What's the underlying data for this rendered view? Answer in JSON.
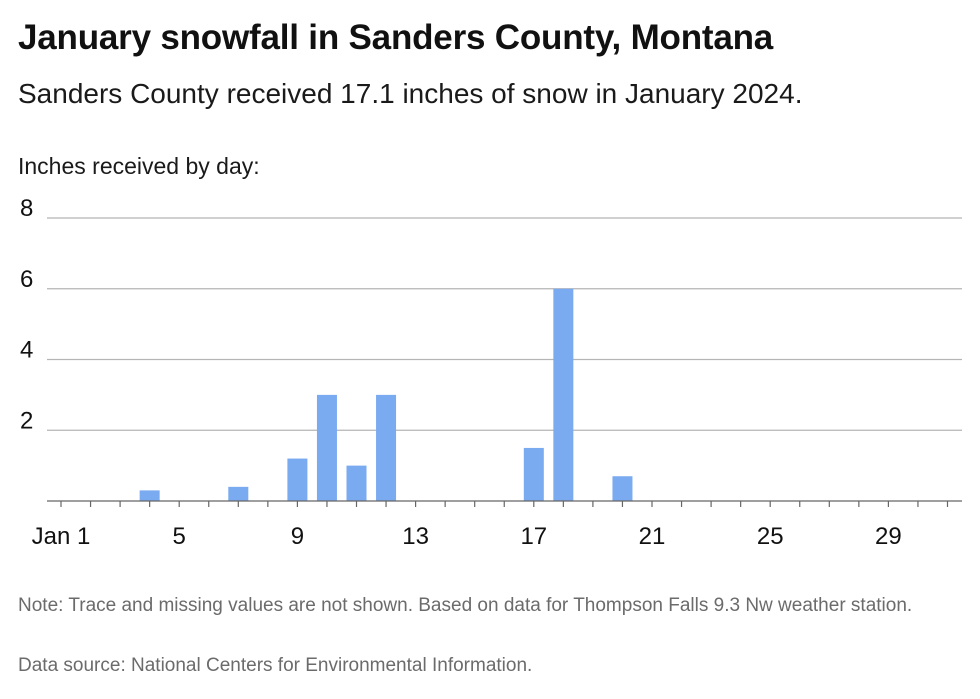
{
  "title": "January snowfall in Sanders County, Montana",
  "subtitle": "Sanders County received 17.1 inches of snow in January 2024.",
  "y_axis_label": "Inches received by day:",
  "note": "Note: Trace and missing values are not shown. Based on data for Thompson Falls 9.3 Nw weather station.",
  "source": "Data source: National Centers for Environmental Information.",
  "colors": {
    "bar": "#7aaaf0",
    "grid": "#b5b5b5",
    "baseline": "#666666"
  },
  "chart_data": {
    "type": "bar",
    "x": [
      1,
      2,
      3,
      4,
      5,
      6,
      7,
      8,
      9,
      10,
      11,
      12,
      13,
      14,
      15,
      16,
      17,
      18,
      19,
      20,
      21,
      22,
      23,
      24,
      25,
      26,
      27,
      28,
      29,
      30,
      31
    ],
    "values": [
      0,
      0,
      0,
      0.3,
      0,
      0,
      0.4,
      0,
      1.2,
      3,
      1,
      3,
      0,
      0,
      0,
      0,
      1.5,
      6,
      0,
      0.7,
      0,
      0,
      0,
      0,
      0,
      0,
      0,
      0,
      0,
      0,
      0
    ],
    "x_ticks": [
      1,
      5,
      9,
      13,
      17,
      21,
      25,
      29
    ],
    "x_tick_labels": [
      "Jan 1",
      "5",
      "9",
      "13",
      "17",
      "21",
      "25",
      "29"
    ],
    "y_ticks": [
      2,
      4,
      6,
      8
    ],
    "y_tick_labels": [
      "2",
      "4",
      "6",
      "8"
    ],
    "ylim": [
      0,
      8
    ],
    "xlim": [
      1,
      31
    ],
    "grid": true
  }
}
